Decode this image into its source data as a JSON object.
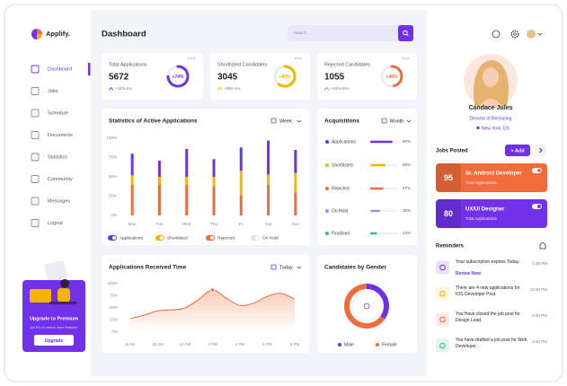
{
  "sidebar": {
    "logo": "Applify.",
    "nav": [
      "Dashboard",
      "Jobs",
      "Schedule",
      "Documents",
      "Statistics",
      "Community",
      "Messages",
      "Logout"
    ],
    "promo": {
      "title": "Upgrade to Premium",
      "text": "Go Pro to unlock more features",
      "button": "Upgrade"
    }
  },
  "header": {
    "title": "Dashboard",
    "search": "Search"
  },
  "stat_cards": [
    {
      "title": "Total Applications",
      "value": 5672,
      "change": "+14% Inc",
      "ring": {
        "value": 74,
        "label": "+74%"
      },
      "color": "#7131e8"
    },
    {
      "title": "Shortlisted Candidates",
      "value": 3045,
      "change": "+06% Inc",
      "ring": {
        "value": 60,
        "label": "+60%"
      },
      "color": "#f5b400"
    },
    {
      "title": "Rejected Candidates",
      "value": 1055,
      "change": "+04% Dec",
      "ring": {
        "value": 46,
        "label": "+46%"
      },
      "color": "#f26b3a"
    }
  ],
  "activity_chart": {
    "type": "bar",
    "stacked": true,
    "title": "Statistics of Active Applications",
    "period": "Week",
    "categories": [
      "Mon",
      "Tue",
      "Wed",
      "Thu",
      "Fri",
      "Sat",
      "Sun"
    ],
    "series": [
      {
        "name": "Applications",
        "color": "#7131e8",
        "values": [
          28,
          21,
          36,
          23,
          30,
          44,
          30
        ]
      },
      {
        "name": "Shortlisted",
        "color": "#f5b400",
        "values": [
          12,
          10,
          10,
          12,
          32,
          13,
          25
        ]
      },
      {
        "name": "Rejected",
        "color": "#f26b3a",
        "values": [
          40,
          40,
          40,
          38,
          26,
          40,
          30
        ]
      },
      {
        "name": "On Hold",
        "color": "#e3e3ea",
        "values": [
          0,
          0,
          0,
          0,
          0,
          0,
          0
        ]
      }
    ],
    "ylim": [
      0,
      100
    ],
    "yticks": [
      {
        "value": 0,
        "label": "0%"
      },
      {
        "value": 25,
        "label": "25%"
      },
      {
        "value": 50,
        "label": "50%"
      },
      {
        "value": 75,
        "label": "75%"
      },
      {
        "value": 100,
        "label": "100%"
      }
    ]
  },
  "acquisitions": {
    "type": "bar",
    "title": "Acquisitions",
    "period": "Month",
    "categories": [
      "Applications",
      "Shortlisted",
      "Rejected",
      "On Hold",
      "Finalised"
    ],
    "values": [
      80,
      55,
      47,
      35,
      24
    ],
    "value_labels": [
      "80%",
      "55%",
      "47%",
      "35%",
      "24%"
    ],
    "colors": [
      "#7131e8",
      "#f5b400",
      "#f26b3a",
      "#a48af3",
      "#2ec27e"
    ],
    "xlim": [
      0,
      100
    ]
  },
  "time_chart": {
    "type": "area",
    "title": "Applications Received Time",
    "period": "Today",
    "categories": [
      "8 AM",
      null,
      "10 AM",
      null,
      "12 AM",
      null,
      "2 PM",
      null,
      "4 PM",
      null,
      "6 PM",
      null,
      "8 PM"
    ],
    "values": [
      28,
      35,
      44,
      46,
      50,
      68,
      87,
      70,
      55,
      60,
      74,
      80,
      68
    ],
    "color": "#f26b3a",
    "ylim": [
      0,
      100
    ],
    "yticks": [
      {
        "value": 0,
        "label": "0%"
      },
      {
        "value": 25,
        "label": "25%"
      },
      {
        "value": 50,
        "label": "50%"
      },
      {
        "value": 75,
        "label": "75%"
      },
      {
        "value": 100,
        "label": "100%"
      }
    ]
  },
  "gender_chart": {
    "type": "pie",
    "title": "Candidates by Gender",
    "categories": [
      "Male",
      "Female"
    ],
    "values": [
      35,
      65
    ],
    "colors": [
      "#7131e8",
      "#f26b3a"
    ]
  },
  "profile": {
    "name": "Candace Jules",
    "role": "Director of Recruiting",
    "location": "New York, US"
  },
  "jobs": {
    "title": "Jobs Posted",
    "button": "+ Add",
    "items": [
      {
        "count": 95,
        "title": "Sr. Android Developer",
        "subtitle": "Total Applications",
        "color": "#f26b3a"
      },
      {
        "count": 80,
        "title": "UX/UI Designer",
        "subtitle": "Total Applications",
        "color": "#7131e8"
      }
    ]
  },
  "reminders": {
    "title": "Reminders",
    "items": [
      {
        "text": "Your subscription expires Today.",
        "link": "Renew Now",
        "time": "4:30 PM",
        "color": "#7131e8"
      },
      {
        "text": "There are 4 new applications for IOS Developer Post.",
        "time": "12:40 PM",
        "color": "#f5b400"
      },
      {
        "text": "You Have closed the job post for Design Lead.",
        "time": "4:30 PM",
        "color": "#f26b3a"
      },
      {
        "text": "You have drafted a job post for Web Developer.",
        "time": "4:30 PM",
        "color": "#2ec27e"
      }
    ]
  }
}
